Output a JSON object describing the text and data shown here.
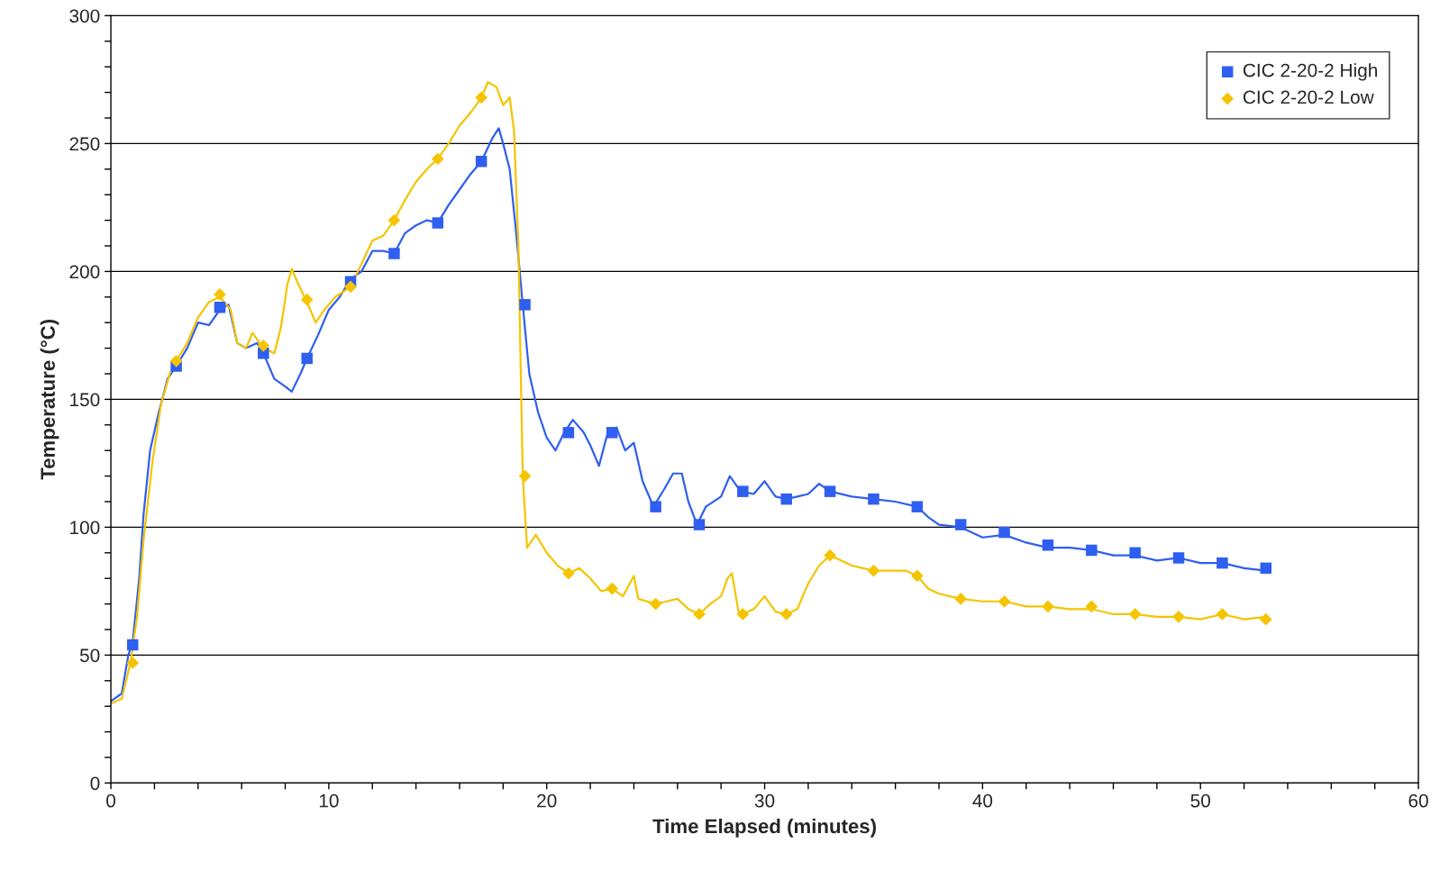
{
  "chart_data": {
    "type": "line",
    "xlabel": "Time Elapsed (minutes)",
    "ylabel": "Temperature (°C)",
    "xlim": [
      0,
      60
    ],
    "ylim": [
      0,
      300
    ],
    "xticks": [
      0,
      {
        "value": 2,
        "label": null
      },
      {
        "value": 4,
        "label": null
      },
      {
        "value": 6,
        "label": null
      },
      {
        "value": 8,
        "label": null
      },
      10,
      {
        "value": 12,
        "label": null
      },
      {
        "value": 14,
        "label": null
      },
      {
        "value": 16,
        "label": null
      },
      {
        "value": 18,
        "label": null
      },
      20,
      {
        "value": 22,
        "label": null
      },
      {
        "value": 24,
        "label": null
      },
      {
        "value": 26,
        "label": null
      },
      {
        "value": 28,
        "label": null
      },
      30,
      {
        "value": 32,
        "label": null
      },
      {
        "value": 34,
        "label": null
      },
      {
        "value": 36,
        "label": null
      },
      {
        "value": 38,
        "label": null
      },
      40,
      {
        "value": 42,
        "label": null
      },
      {
        "value": 44,
        "label": null
      },
      {
        "value": 46,
        "label": null
      },
      {
        "value": 48,
        "label": null
      },
      50,
      {
        "value": 52,
        "label": null
      },
      {
        "value": 54,
        "label": null
      },
      {
        "value": 56,
        "label": null
      },
      {
        "value": 58,
        "label": null
      },
      60
    ],
    "yticks": [
      0,
      {
        "value": 10,
        "label": null
      },
      {
        "value": 20,
        "label": null
      },
      {
        "value": 30,
        "label": null
      },
      {
        "value": 40,
        "label": null
      },
      50,
      {
        "value": 60,
        "label": null
      },
      {
        "value": 70,
        "label": null
      },
      {
        "value": 80,
        "label": null
      },
      {
        "value": 90,
        "label": null
      },
      100,
      {
        "value": 110,
        "label": null
      },
      {
        "value": 120,
        "label": null
      },
      {
        "value": 130,
        "label": null
      },
      {
        "value": 140,
        "label": null
      },
      150,
      {
        "value": 160,
        "label": null
      },
      {
        "value": 170,
        "label": null
      },
      {
        "value": 180,
        "label": null
      },
      {
        "value": 190,
        "label": null
      },
      200,
      {
        "value": 210,
        "label": null
      },
      {
        "value": 220,
        "label": null
      },
      {
        "value": 230,
        "label": null
      },
      {
        "value": 240,
        "label": null
      },
      250,
      {
        "value": 260,
        "label": null
      },
      {
        "value": 270,
        "label": null
      },
      {
        "value": 280,
        "label": null
      },
      {
        "value": 290,
        "label": null
      },
      300
    ],
    "grid": "y",
    "legend": "top right",
    "series": [
      {
        "color": "#2f5ff0",
        "marker": "none",
        "x": [
          0,
          0.5,
          0.8,
          1.0,
          1.3,
          1.5,
          1.8,
          2.2,
          2.6,
          3,
          3.5,
          4,
          4.5,
          5,
          5.4,
          5.8,
          6.2,
          6.7,
          7,
          7.5,
          8,
          8.3,
          8.7,
          9,
          9.5,
          10,
          10.5,
          11,
          11.5,
          12,
          12.5,
          13,
          13.5,
          14,
          14.5,
          15,
          15.5,
          16,
          16.5,
          17,
          17.5,
          17.8,
          18,
          18.3,
          18.6,
          18.9,
          19.2,
          19.6,
          20,
          20.4,
          20.8,
          21.2,
          21.7,
          22,
          22.4,
          22.8,
          23.2,
          23.6,
          24,
          24.4,
          24.9,
          25.4,
          25.8,
          26.2,
          26.5,
          26.9,
          27.3,
          28,
          28.4,
          28.9,
          29.5,
          30,
          30.5,
          31,
          31.5,
          32,
          32.5,
          33,
          34,
          35,
          36,
          37,
          37.5,
          38,
          39,
          40,
          41,
          42,
          43,
          44,
          45,
          46,
          47,
          48,
          49,
          50,
          51,
          52,
          53
        ],
        "values": [
          32,
          35,
          50,
          55,
          80,
          105,
          130,
          145,
          158,
          163,
          170,
          180,
          179,
          185,
          187,
          172,
          170,
          172,
          168,
          158,
          155,
          153,
          160,
          166,
          175,
          185,
          190,
          197,
          200,
          208,
          208,
          207,
          215,
          218,
          220,
          219,
          226,
          232,
          238,
          243,
          252,
          256,
          250,
          240,
          215,
          187,
          160,
          145,
          135,
          130,
          137,
          142,
          137,
          132,
          124,
          137,
          139,
          130,
          133,
          118,
          108,
          115,
          121,
          121,
          110,
          101,
          108,
          112,
          120,
          114,
          113,
          118,
          112,
          111,
          112,
          113,
          117,
          114,
          112,
          111,
          110,
          108,
          104,
          101,
          100,
          96,
          97,
          94,
          92,
          92,
          91,
          89,
          89,
          87,
          88,
          86,
          86,
          84,
          83
        ]
      },
      {
        "color": "#f5c400",
        "marker": "none",
        "x": [
          0,
          0.5,
          0.9,
          1.2,
          1.5,
          1.9,
          2.3,
          2.7,
          3,
          3.5,
          4,
          4.5,
          5,
          5.5,
          5.8,
          6.2,
          6.5,
          7,
          7.5,
          7.8,
          8.1,
          8.3,
          8.6,
          9,
          9.4,
          9.8,
          10.3,
          11,
          11.5,
          12,
          12.5,
          13,
          13.5,
          14,
          14.5,
          15,
          15.5,
          16,
          16.5,
          17,
          17.3,
          17.7,
          18,
          18.3,
          18.5,
          18.7,
          18.9,
          19.1,
          19.5,
          20,
          20.5,
          21,
          21.5,
          22,
          22.5,
          23,
          23.5,
          24,
          24.2,
          25,
          25.5,
          26,
          26.5,
          27,
          27.5,
          28,
          28.3,
          28.5,
          28.8,
          29,
          29.5,
          30,
          30.5,
          31,
          31.5,
          32,
          32.5,
          33,
          33.5,
          34,
          35,
          36,
          36.5,
          37,
          37.5,
          38,
          39,
          40,
          41,
          42,
          43,
          44,
          45,
          46,
          47,
          48,
          49,
          50,
          51,
          52,
          53
        ],
        "values": [
          31,
          33,
          47,
          65,
          95,
          125,
          148,
          160,
          165,
          172,
          182,
          188,
          190,
          185,
          172,
          170,
          176,
          170,
          168,
          178,
          195,
          201,
          195,
          188,
          180,
          185,
          190,
          194,
          203,
          212,
          214,
          220,
          228,
          235,
          240,
          244,
          250,
          257,
          262,
          268,
          274,
          272,
          265,
          268,
          255,
          210,
          120,
          92,
          97,
          90,
          85,
          82,
          84,
          80,
          75,
          76,
          73,
          81,
          72,
          70,
          71,
          72,
          68,
          66,
          70,
          73,
          80,
          82,
          67,
          66,
          68,
          73,
          67,
          66,
          68,
          78,
          85,
          89,
          87,
          85,
          83,
          83,
          83,
          81,
          76,
          74,
          72,
          71,
          71,
          69,
          69,
          68,
          68,
          66,
          66,
          65,
          65,
          64,
          66,
          64,
          65
        ]
      },
      {
        "type": "scatter",
        "name": "CIC 2-20-2 High",
        "color": "#2f5ff0",
        "marker": "square",
        "x": [
          1,
          3,
          5,
          7,
          9,
          11,
          13,
          15,
          17,
          19,
          21,
          23,
          25,
          27,
          29,
          31,
          33,
          35,
          37,
          39,
          41,
          43,
          45,
          47,
          49,
          51,
          53
        ],
        "values": [
          54,
          163,
          186,
          168,
          166,
          196,
          207,
          219,
          243,
          187,
          137,
          137,
          108,
          101,
          114,
          111,
          114,
          111,
          108,
          101,
          98,
          93,
          91,
          90,
          88,
          86,
          84
        ]
      },
      {
        "type": "scatter",
        "name": "CIC 2-20-2 Low",
        "color": "#f5c400",
        "marker": "diamond",
        "x": [
          1,
          3,
          5,
          7,
          9,
          11,
          13,
          15,
          17,
          19,
          21,
          23,
          25,
          27,
          29,
          31,
          33,
          35,
          37,
          39,
          41,
          43,
          45,
          47,
          49,
          51,
          53
        ],
        "values": [
          47,
          165,
          191,
          171,
          189,
          194,
          220,
          244,
          268,
          120,
          82,
          76,
          70,
          66,
          66,
          66,
          89,
          83,
          81,
          72,
          71,
          69,
          69,
          66,
          65,
          66,
          64
        ]
      }
    ]
  }
}
